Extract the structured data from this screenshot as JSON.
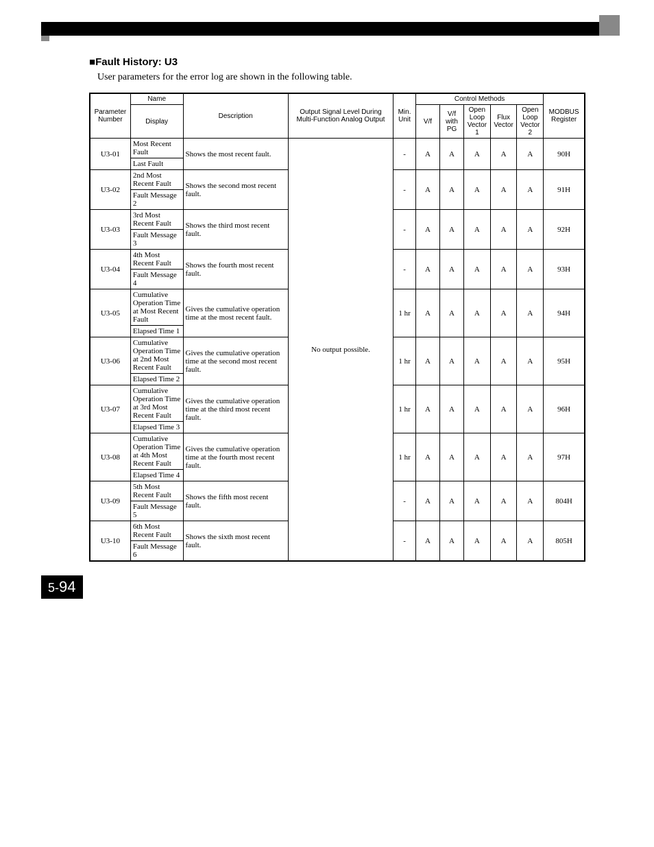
{
  "section": {
    "marker": "■",
    "title": "Fault History: U3",
    "intro": "User parameters for the error log are shown in the following table."
  },
  "headers": {
    "param_number": "Parameter Number",
    "name": "Name",
    "display": "Display",
    "description": "Description",
    "output_signal": "Output Signal Level During Multi-Function Analog Output",
    "min_unit": "Min. Unit",
    "control_methods": "Control Methods",
    "cm": {
      "vf": "V/f",
      "vf_pg": "V/f with PG",
      "olv1": "Open Loop Vector 1",
      "flux": "Flux Vector",
      "olv2": "Open Loop Vector 2"
    },
    "modbus": "MODBUS Register"
  },
  "output_cell": "No output possible.",
  "rows": [
    {
      "param": "U3-01",
      "name": "Most Recent Fault",
      "display": "Last Fault",
      "desc": "Shows the most recent fault.",
      "min": "-",
      "cm": [
        "A",
        "A",
        "A",
        "A",
        "A"
      ],
      "modbus": "90H"
    },
    {
      "param": "U3-02",
      "name": "2nd Most Recent Fault",
      "display": "Fault Message 2",
      "desc": "Shows the second most recent fault.",
      "min": "-",
      "cm": [
        "A",
        "A",
        "A",
        "A",
        "A"
      ],
      "modbus": "91H"
    },
    {
      "param": "U3-03",
      "name": "3rd Most Recent Fault",
      "display": "Fault Message 3",
      "desc": "Shows the third most recent fault.",
      "min": "-",
      "cm": [
        "A",
        "A",
        "A",
        "A",
        "A"
      ],
      "modbus": "92H"
    },
    {
      "param": "U3-04",
      "name": "4th Most Recent Fault",
      "display": "Fault Message 4",
      "desc": "Shows the fourth most recent fault.",
      "min": "-",
      "cm": [
        "A",
        "A",
        "A",
        "A",
        "A"
      ],
      "modbus": "93H"
    },
    {
      "param": "U3-05",
      "name": "Cumulative Operation Time at Most Recent Fault",
      "display": "Elapsed Time 1",
      "desc": "Gives the cumulative operation time at the most recent fault.",
      "min": "1 hr",
      "cm": [
        "A",
        "A",
        "A",
        "A",
        "A"
      ],
      "modbus": "94H"
    },
    {
      "param": "U3-06",
      "name": "Cumulative Operation Time at 2nd Most Recent Fault",
      "display": "Elapsed Time 2",
      "desc": "Gives the cumulative operation time at the second most recent fault.",
      "min": "1 hr",
      "cm": [
        "A",
        "A",
        "A",
        "A",
        "A"
      ],
      "modbus": "95H"
    },
    {
      "param": "U3-07",
      "name": "Cumulative Operation Time at 3rd Most Recent Fault",
      "display": "Elapsed Time 3",
      "desc": "Gives the cumulative operation time at the third most recent fault.",
      "min": "1 hr",
      "cm": [
        "A",
        "A",
        "A",
        "A",
        "A"
      ],
      "modbus": "96H"
    },
    {
      "param": "U3-08",
      "name": "Cumulative Operation Time at 4th Most Recent Fault",
      "display": "Elapsed Time 4",
      "desc": "Gives the cumulative operation time at the fourth most recent fault.",
      "min": "1 hr",
      "cm": [
        "A",
        "A",
        "A",
        "A",
        "A"
      ],
      "modbus": "97H"
    },
    {
      "param": "U3-09",
      "name": "5th Most Recent Fault",
      "display": "Fault Message 5",
      "desc": "Shows the fifth most recent fault.",
      "min": "-",
      "cm": [
        "A",
        "A",
        "A",
        "A",
        "A"
      ],
      "modbus": "804H"
    },
    {
      "param": "U3-10",
      "name": "6th Most Recent Fault",
      "display": "Fault Message 6",
      "desc": "Shows the sixth most recent fault.",
      "min": "-",
      "cm": [
        "A",
        "A",
        "A",
        "A",
        "A"
      ],
      "modbus": "805H"
    }
  ],
  "page": {
    "chapter": "5",
    "sep": "-",
    "num": "94"
  }
}
